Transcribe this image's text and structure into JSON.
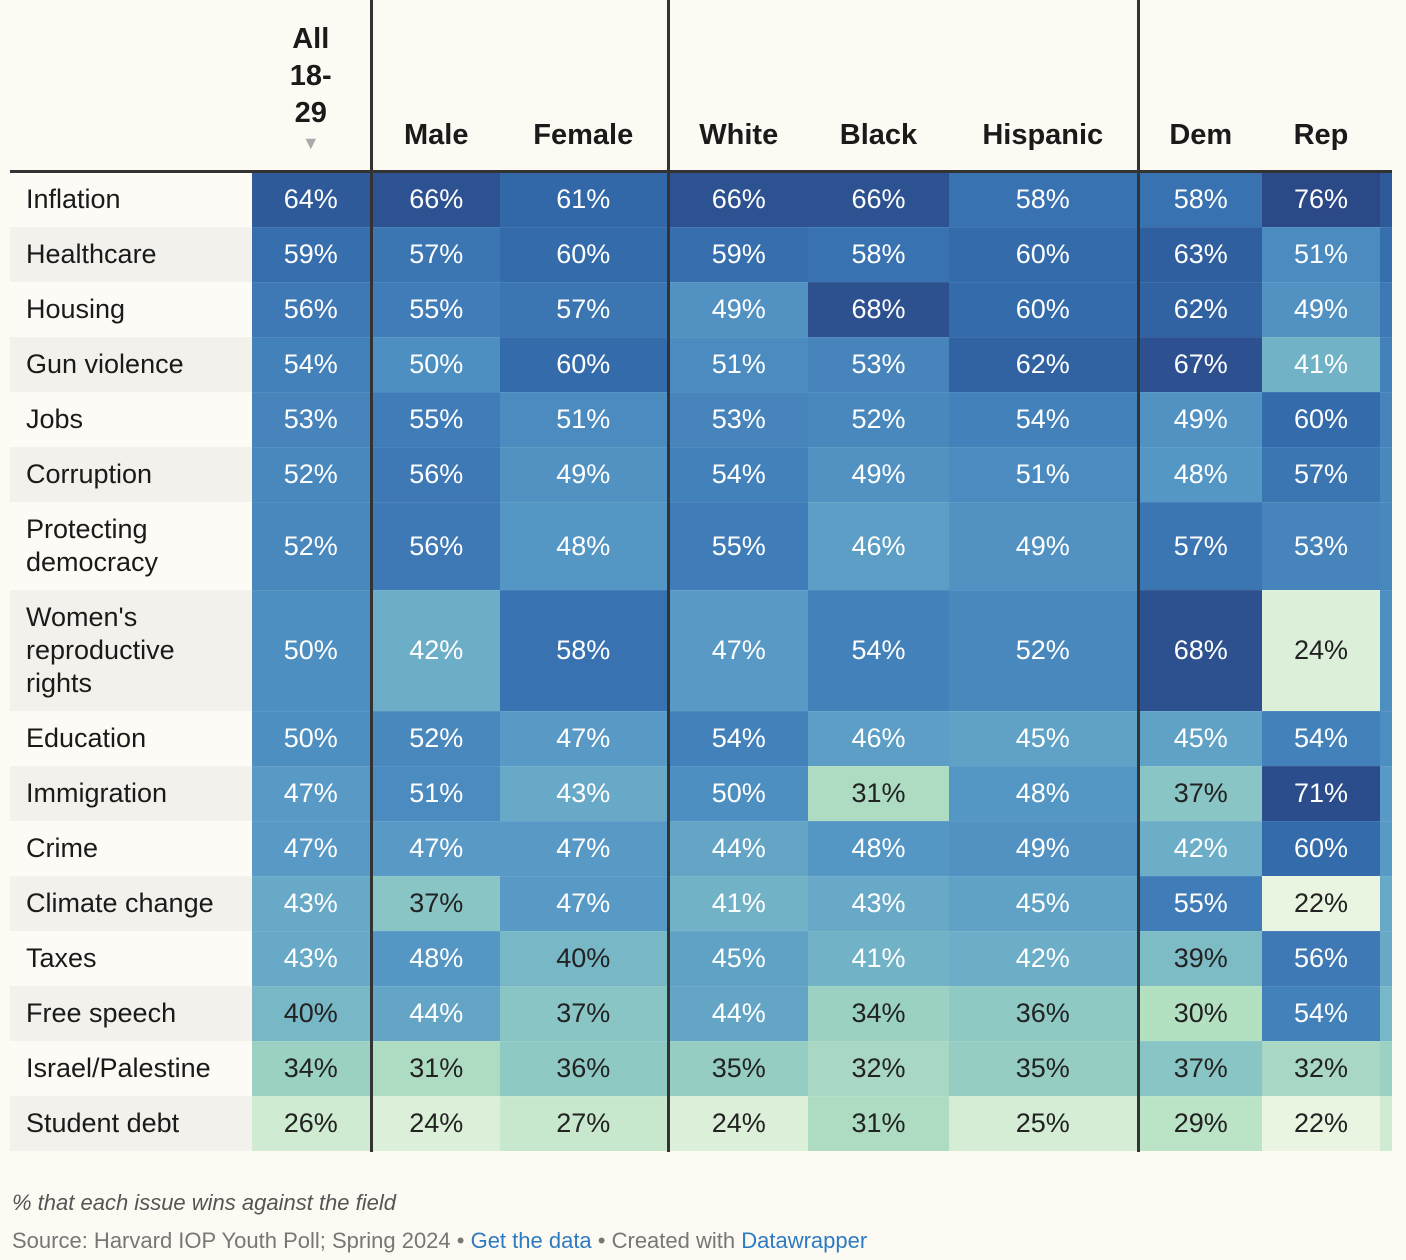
{
  "chart_data": {
    "type": "heatmap",
    "columns": [
      "All 18-29",
      "Male",
      "Female",
      "White",
      "Black",
      "Hispanic",
      "Dem",
      "Rep"
    ],
    "sort_indicator": "▼",
    "rows": [
      {
        "label": "Inflation",
        "values": [
          64,
          66,
          61,
          66,
          66,
          58,
          58,
          76
        ]
      },
      {
        "label": "Healthcare",
        "values": [
          59,
          57,
          60,
          59,
          58,
          60,
          63,
          51
        ]
      },
      {
        "label": "Housing",
        "values": [
          56,
          55,
          57,
          49,
          68,
          60,
          62,
          49
        ]
      },
      {
        "label": "Gun violence",
        "values": [
          54,
          50,
          60,
          51,
          53,
          62,
          67,
          41
        ]
      },
      {
        "label": "Jobs",
        "values": [
          53,
          55,
          51,
          53,
          52,
          54,
          49,
          60
        ]
      },
      {
        "label": "Corruption",
        "values": [
          52,
          56,
          49,
          54,
          49,
          51,
          48,
          57
        ]
      },
      {
        "label": "Protecting democracy",
        "values": [
          52,
          56,
          48,
          55,
          46,
          49,
          57,
          53
        ]
      },
      {
        "label": "Women's reproductive rights",
        "values": [
          50,
          42,
          58,
          47,
          54,
          52,
          68,
          24
        ]
      },
      {
        "label": "Education",
        "values": [
          50,
          52,
          47,
          54,
          46,
          45,
          45,
          54
        ]
      },
      {
        "label": "Immigration",
        "values": [
          47,
          51,
          43,
          50,
          31,
          48,
          37,
          71
        ]
      },
      {
        "label": "Crime",
        "values": [
          47,
          47,
          47,
          44,
          48,
          49,
          42,
          60
        ]
      },
      {
        "label": "Climate change",
        "values": [
          43,
          37,
          47,
          41,
          43,
          45,
          55,
          22
        ]
      },
      {
        "label": "Taxes",
        "values": [
          43,
          48,
          40,
          45,
          41,
          42,
          39,
          56
        ]
      },
      {
        "label": "Free speech",
        "values": [
          40,
          44,
          37,
          44,
          34,
          36,
          30,
          54
        ]
      },
      {
        "label": "Israel/Palestine",
        "values": [
          34,
          31,
          36,
          35,
          32,
          35,
          37,
          32
        ]
      },
      {
        "label": "Student debt",
        "values": [
          26,
          24,
          27,
          24,
          31,
          25,
          29,
          22
        ]
      }
    ],
    "unit": "%"
  },
  "notes": "% that each issue wins against the field",
  "source": {
    "prefix": "Source: Harvard IOP Youth Poll; Spring 2024 • ",
    "get_data": "Get the data",
    "mid": " • Created with ",
    "datawrapper": "Datawrapper"
  },
  "colors": {
    "link": "#2d7bc2"
  }
}
